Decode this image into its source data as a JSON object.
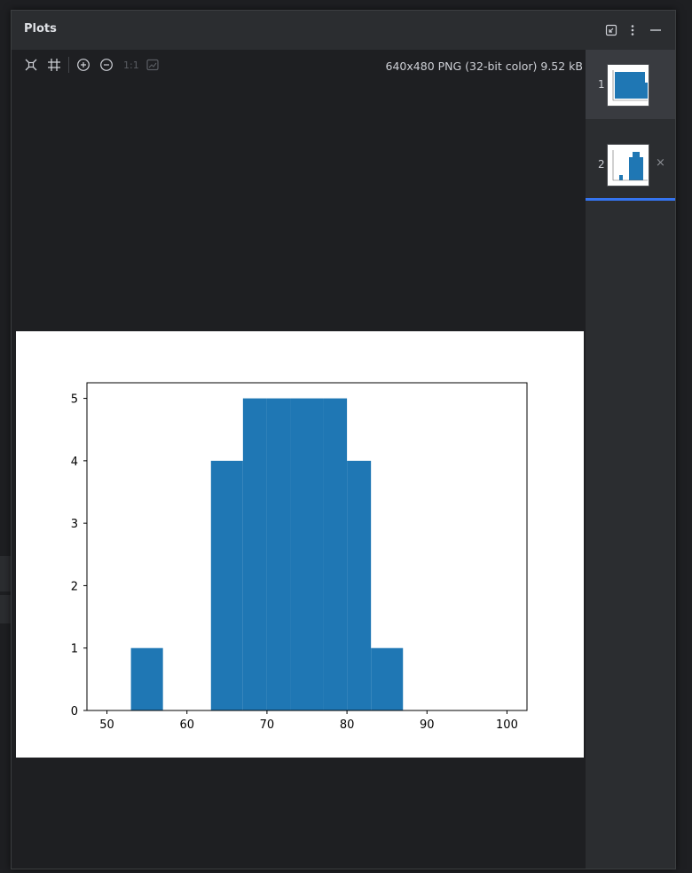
{
  "window": {
    "title": "Plots",
    "image_info": "640x480 PNG (32-bit color) 9.52 kB"
  },
  "toolbar": {
    "actual_size_label": "1:1"
  },
  "thumbnails": [
    {
      "number": "1"
    },
    {
      "number": "2",
      "close": "×"
    }
  ],
  "colors": {
    "bar": "#1f77b4",
    "selection": "#3574f0",
    "panel": "#2b2d30",
    "background": "#1e1f22"
  },
  "chart_data": {
    "type": "bar",
    "title": "",
    "xlabel": "",
    "ylabel": "",
    "xlim": [
      47.5,
      102.5
    ],
    "ylim": [
      0,
      5.25
    ],
    "xticks": [
      50,
      60,
      70,
      80,
      90,
      100
    ],
    "yticks": [
      0,
      1,
      2,
      3,
      4,
      5
    ],
    "bins": [
      {
        "start": 53,
        "end": 57,
        "value": 1
      },
      {
        "start": 57,
        "end": 60,
        "value": 0
      },
      {
        "start": 60,
        "end": 63,
        "value": 0
      },
      {
        "start": 63,
        "end": 67,
        "value": 4
      },
      {
        "start": 67,
        "end": 70,
        "value": 5
      },
      {
        "start": 70,
        "end": 73,
        "value": 5
      },
      {
        "start": 73,
        "end": 77,
        "value": 5
      },
      {
        "start": 77,
        "end": 80,
        "value": 5
      },
      {
        "start": 80,
        "end": 83,
        "value": 4
      },
      {
        "start": 83,
        "end": 87,
        "value": 1
      },
      {
        "start": 87,
        "end": 90,
        "value": 0
      },
      {
        "start": 90,
        "end": 93,
        "value": 0
      },
      {
        "start": 93,
        "end": 97,
        "value": 0
      },
      {
        "start": 97,
        "end": 100,
        "value": 0
      }
    ]
  }
}
